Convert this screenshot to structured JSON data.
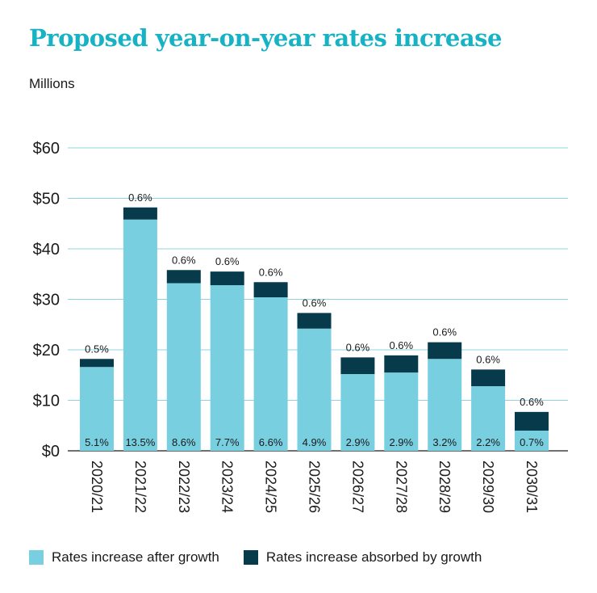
{
  "title": "Proposed year-on-year rates increase",
  "unit_label": "Millions",
  "colors": {
    "title": "#17b3c5",
    "after_growth": "#78cfe0",
    "absorbed": "#073a4b",
    "grid": "#8fd3e0",
    "axis": "#1a1a1a"
  },
  "legend": {
    "after_growth": "Rates increase after growth",
    "absorbed": "Rates increase absorbed by growth"
  },
  "chart_data": {
    "type": "bar",
    "stacked": true,
    "categories": [
      "2020/21",
      "2021/22",
      "2022/23",
      "2023/24",
      "2024/25",
      "2025/26",
      "2026/27",
      "2027/28",
      "2028/29",
      "2029/30",
      "2030/31"
    ],
    "series": [
      {
        "name": "Rates increase after growth",
        "key": "after_growth",
        "values": [
          16.6,
          45.8,
          33.2,
          32.8,
          30.4,
          24.2,
          15.2,
          15.5,
          18.2,
          12.8,
          4.0
        ],
        "labels": [
          "5.1%",
          "13.5%",
          "8.6%",
          "7.7%",
          "6.6%",
          "4.9%",
          "2.9%",
          "2.9%",
          "3.2%",
          "2.2%",
          "0.7%"
        ]
      },
      {
        "name": "Rates increase absorbed by growth",
        "key": "absorbed",
        "values": [
          1.6,
          2.4,
          2.6,
          2.7,
          3.0,
          3.1,
          3.3,
          3.4,
          3.3,
          3.3,
          3.7
        ],
        "labels": [
          "0.5%",
          "0.6%",
          "0.6%",
          "0.6%",
          "0.6%",
          "0.6%",
          "0.6%",
          "0.6%",
          "0.6%",
          "0.6%",
          "0.6%"
        ]
      }
    ],
    "yticks": [
      "$0",
      "$10",
      "$20",
      "$30",
      "$40",
      "$50",
      "$60"
    ],
    "ylim": [
      0,
      60
    ],
    "grid": true,
    "legend_position": "bottom-left"
  }
}
